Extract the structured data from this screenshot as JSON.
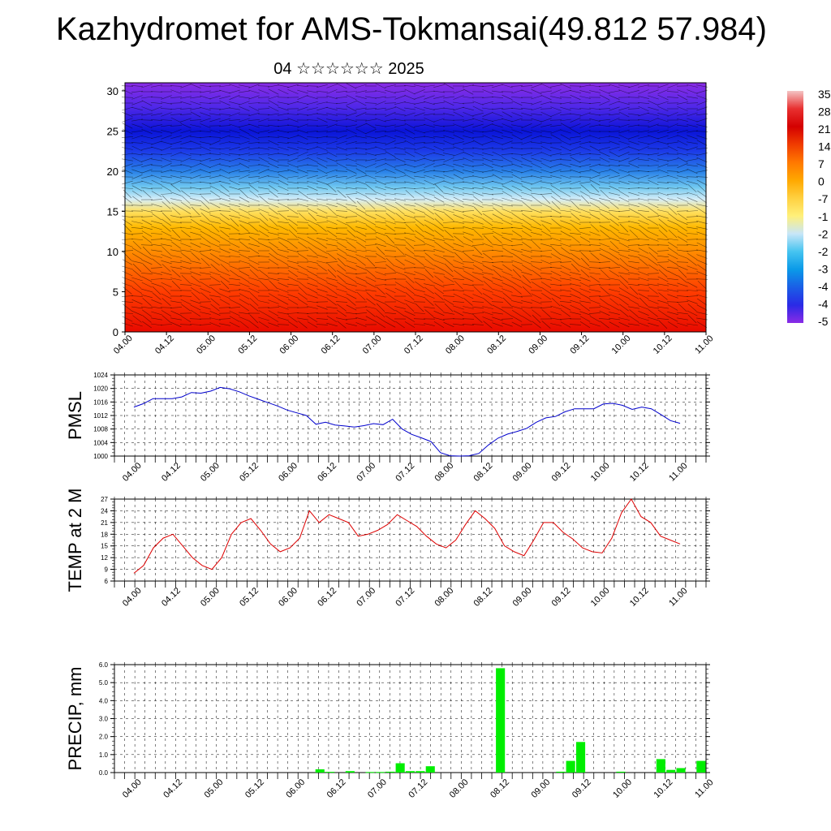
{
  "title": "Kazhydromet for AMS-Tokmansai(49.812 57.984)",
  "subtitle": "04 ☆☆☆☆☆☆ 2025",
  "chart_data": [
    {
      "type": "heatmap",
      "description_level": "cross-section",
      "x_ticks": [
        "04.00",
        "04.12",
        "05.00",
        "05.12",
        "06.00",
        "06.12",
        "07.00",
        "07.12",
        "08.00",
        "08.12",
        "09.00",
        "09.12",
        "10.00",
        "10.12",
        "11.00"
      ],
      "y_ticks": [
        "0",
        "5",
        "10",
        "15",
        "20",
        "25",
        "30"
      ],
      "ylim": [
        0,
        31
      ],
      "colorbar_labels": [
        "35",
        "28",
        "21",
        "14",
        "7",
        "0",
        "-7",
        "-1",
        "-2",
        "-2",
        "-3",
        "-4",
        "-4",
        "-5"
      ],
      "colorbar_colors": [
        "#f4c4c4",
        "#e83030",
        "#d40000",
        "#f03c00",
        "#ff7800",
        "#ffa800",
        "#ffd040",
        "#fff07a",
        "#c8e6f8",
        "#46c4f0",
        "#0a9ae8",
        "#1a5ee6",
        "#2a2ae6",
        "#8a2be6"
      ],
      "profile": [
        {
          "z": 0,
          "color": "#e80a00"
        },
        {
          "z": 5,
          "color": "#ff3c00"
        },
        {
          "z": 9,
          "color": "#ff7c00"
        },
        {
          "z": 13,
          "color": "#ffb800"
        },
        {
          "z": 15,
          "color": "#ffe060"
        },
        {
          "z": 16.5,
          "color": "#d6eef8"
        },
        {
          "z": 18,
          "color": "#70c8f0"
        },
        {
          "z": 20,
          "color": "#2880e8"
        },
        {
          "z": 22.5,
          "color": "#1c3ae8"
        },
        {
          "z": 25,
          "color": "#0a14d8"
        },
        {
          "z": 28,
          "color": "#5028e8"
        },
        {
          "z": 31,
          "color": "#8a2ce6"
        }
      ]
    },
    {
      "type": "line",
      "ylabel": "PMSL",
      "yticks": [
        1000,
        1004,
        1008,
        1012,
        1016,
        1020,
        1024
      ],
      "ylim": [
        1000,
        1024
      ],
      "x_ticks": [
        "04.00",
        "04.12",
        "05.00",
        "05.12",
        "06.00",
        "06.12",
        "07.00",
        "07.12",
        "08.00",
        "08.12",
        "09.00",
        "09.12",
        "10.00",
        "10.12",
        "11.00"
      ],
      "color": "#0000cc",
      "values": [
        1014.5,
        1015.5,
        1017,
        1017,
        1017,
        1017.5,
        1018.8,
        1018.6,
        1019.2,
        1020.3,
        1019.9,
        1019,
        1017.8,
        1016.8,
        1015.8,
        1014.8,
        1013.6,
        1012.8,
        1012,
        1009.4,
        1010,
        1009.2,
        1008.9,
        1008.6,
        1009,
        1009.6,
        1009.3,
        1010.9,
        1008,
        1006.4,
        1005.4,
        1004.3,
        1001,
        1000.1,
        1000,
        1000.1,
        1000.8,
        1003.3,
        1005.3,
        1006.5,
        1007.3,
        1008.2,
        1010,
        1011.3,
        1011.7,
        1013.1,
        1014,
        1014,
        1014,
        1015.4,
        1015.6,
        1015,
        1013.8,
        1014.5,
        1014,
        1012.3,
        1010.5,
        1009.7
      ]
    },
    {
      "type": "line",
      "ylabel": "TEMP at 2 M",
      "yticks": [
        6,
        9,
        12,
        15,
        18,
        21,
        24,
        27
      ],
      "ylim": [
        6,
        27
      ],
      "x_ticks": [
        "04.00",
        "04.12",
        "05.00",
        "05.12",
        "06.00",
        "06.12",
        "07.00",
        "07.12",
        "08.00",
        "08.12",
        "09.00",
        "09.12",
        "10.00",
        "10.12",
        "11.00"
      ],
      "color": "#dd0000",
      "values": [
        8,
        10,
        14.5,
        17,
        18,
        15,
        12,
        10,
        9,
        12,
        18,
        21,
        22,
        19,
        15.5,
        13.5,
        14.5,
        17,
        24,
        21,
        23,
        22,
        21,
        17.5,
        18,
        19,
        20.5,
        23,
        21.5,
        20,
        17.5,
        15.5,
        14.5,
        16.5,
        20.5,
        24,
        22,
        19.5,
        15,
        13.5,
        12.5,
        16.5,
        21,
        21,
        18.5,
        16.8,
        14.5,
        13.5,
        13.2,
        17,
        23.5,
        27,
        22.5,
        21,
        17.5,
        16.5,
        15.5
      ]
    },
    {
      "type": "bar",
      "ylabel": "PRECIP, mm",
      "yticks": [
        "0.0",
        "1.0",
        "2.0",
        "3.0",
        "4.0",
        "5.0",
        "6.0"
      ],
      "ylim": [
        0,
        6
      ],
      "x_ticks": [
        "04.00",
        "04.12",
        "05.00",
        "05.12",
        "06.00",
        "06.12",
        "07.00",
        "07.12",
        "08.00",
        "08.12",
        "09.00",
        "09.12",
        "10.00",
        "10.12",
        "11.00"
      ],
      "color": "#00ee00",
      "values": [
        0,
        0,
        0,
        0,
        0,
        0,
        0,
        0,
        0,
        0,
        0,
        0,
        0,
        0,
        0,
        0,
        0,
        0,
        0,
        0,
        0.18,
        0.04,
        0,
        0.08,
        0,
        0.03,
        0.03,
        0.05,
        0.52,
        0.08,
        0.08,
        0.35,
        0,
        0,
        0,
        0,
        0,
        0,
        5.8,
        0,
        0,
        0,
        0,
        0,
        0.05,
        0.65,
        1.7,
        0,
        0,
        0,
        0.05,
        0,
        0,
        0,
        0.75,
        0.15,
        0.25,
        0,
        0.65
      ]
    }
  ]
}
